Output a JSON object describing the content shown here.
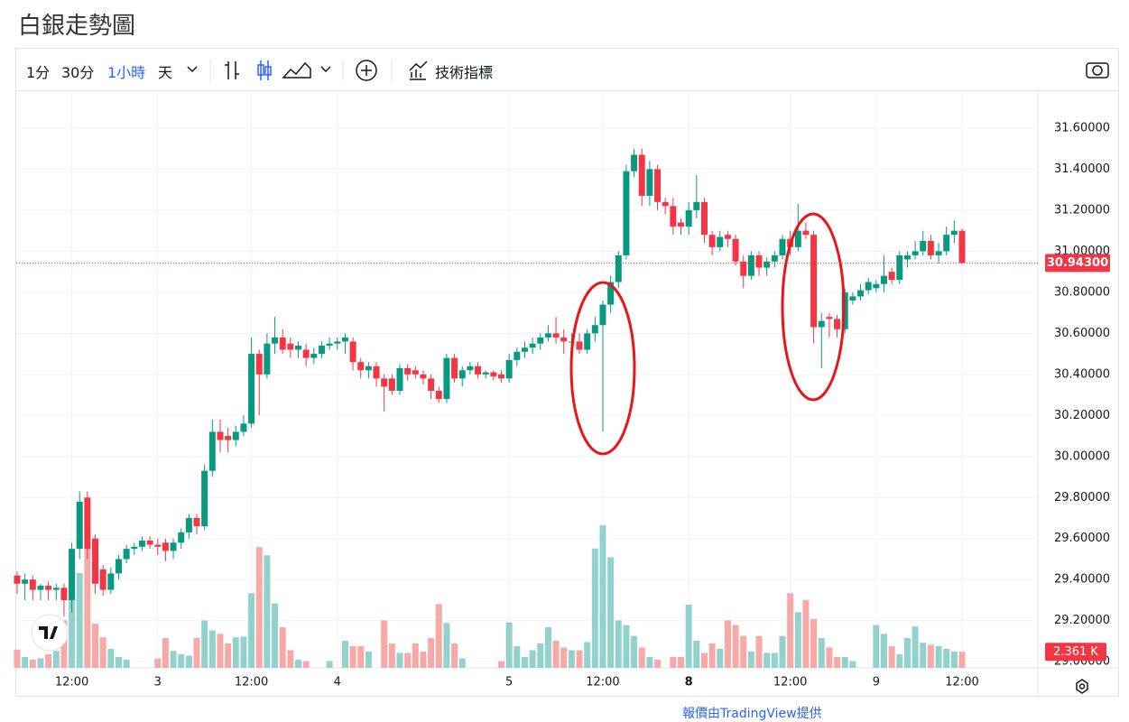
{
  "page_title": "白銀走勢圖",
  "toolbar": {
    "intervals": [
      "1分",
      "30分",
      "1小時",
      "天"
    ],
    "indicators": "技術指標"
  },
  "footer": "報價由TradingView提供",
  "chart_data": {
    "type": "candlestick",
    "up_color": "#089981",
    "down_color": "#f23645",
    "volume_up_color": "#93d2cc",
    "volume_down_color": "#f7a9a7",
    "grid": true,
    "ylim": [
      28.97,
      31.78
    ],
    "volume_ylim": [
      0,
      85
    ],
    "yticks": [
      {
        "value": 29.0,
        "label": "29.00000"
      },
      {
        "value": 29.2,
        "label": "29.20000"
      },
      {
        "value": 29.4,
        "label": "29.40000"
      },
      {
        "value": 29.6,
        "label": "29.60000"
      },
      {
        "value": 29.8,
        "label": "29.80000"
      },
      {
        "value": 30.0,
        "label": "30.00000"
      },
      {
        "value": 30.2,
        "label": "30.20000"
      },
      {
        "value": 30.4,
        "label": "30.40000"
      },
      {
        "value": 30.6,
        "label": "30.60000"
      },
      {
        "value": 30.8,
        "label": "30.80000"
      },
      {
        "value": 31.0,
        "label": "31.00000"
      },
      {
        "value": 31.2,
        "label": "31.20000"
      },
      {
        "value": 31.4,
        "label": "31.40000"
      },
      {
        "value": 31.6,
        "label": "31.60000"
      }
    ],
    "last_price_label": "30.94300",
    "last_volume_label": "2.361 K",
    "categories": [
      null,
      null,
      null,
      null,
      null,
      null,
      null,
      "12:00",
      null,
      null,
      null,
      null,
      null,
      null,
      null,
      null,
      null,
      null,
      "3",
      null,
      null,
      null,
      null,
      null,
      null,
      null,
      null,
      null,
      null,
      null,
      "12:00",
      null,
      null,
      null,
      null,
      null,
      null,
      null,
      null,
      null,
      null,
      "4",
      null,
      null,
      null,
      null,
      null,
      null,
      null,
      null,
      null,
      null,
      null,
      null,
      null,
      null,
      null,
      null,
      null,
      null,
      null,
      null,
      null,
      "5",
      null,
      null,
      null,
      null,
      null,
      null,
      null,
      null,
      null,
      null,
      null,
      "12:00",
      null,
      null,
      null,
      null,
      null,
      null,
      null,
      null,
      null,
      null,
      "8",
      null,
      null,
      null,
      null,
      null,
      null,
      null,
      null,
      null,
      null,
      null,
      null,
      "12:00",
      null,
      null,
      null,
      null,
      null,
      null,
      null,
      null,
      null,
      null,
      "9",
      null,
      null,
      null,
      null,
      null,
      null,
      null,
      null,
      null,
      null,
      "12:00"
    ],
    "candles": [
      [
        29.42,
        29.44,
        29.33,
        29.38
      ],
      [
        29.38,
        29.43,
        29.3,
        29.4
      ],
      [
        29.4,
        29.42,
        29.3,
        29.35
      ],
      [
        29.35,
        29.38,
        29.3,
        29.37
      ],
      [
        29.37,
        29.39,
        29.3,
        29.35
      ],
      [
        29.35,
        29.38,
        29.3,
        29.36
      ],
      [
        29.36,
        29.38,
        29.22,
        29.3
      ],
      [
        29.3,
        29.58,
        29.24,
        29.55
      ],
      [
        29.55,
        29.83,
        29.5,
        29.78
      ],
      [
        29.8,
        29.83,
        29.5,
        29.55
      ],
      [
        29.6,
        29.62,
        29.33,
        29.38
      ],
      [
        29.45,
        29.47,
        29.32,
        29.35
      ],
      [
        29.35,
        29.46,
        29.33,
        29.43
      ],
      [
        29.43,
        29.52,
        29.4,
        29.5
      ],
      [
        29.5,
        29.57,
        29.48,
        29.55
      ],
      [
        29.55,
        29.58,
        29.52,
        29.56
      ],
      [
        29.56,
        29.61,
        29.54,
        29.59
      ],
      [
        29.59,
        29.61,
        29.55,
        29.57
      ],
      [
        29.57,
        29.6,
        29.52,
        29.56
      ],
      [
        29.58,
        29.6,
        29.49,
        29.54
      ],
      [
        29.54,
        29.6,
        29.5,
        29.58
      ],
      [
        29.58,
        29.65,
        29.55,
        29.63
      ],
      [
        29.63,
        29.72,
        29.6,
        29.7
      ],
      [
        29.7,
        29.72,
        29.62,
        29.66
      ],
      [
        29.66,
        29.96,
        29.64,
        29.93
      ],
      [
        29.93,
        30.18,
        29.9,
        30.12
      ],
      [
        30.12,
        30.18,
        30.02,
        30.08
      ],
      [
        30.1,
        30.14,
        30.02,
        30.08
      ],
      [
        30.08,
        30.15,
        30.05,
        30.12
      ],
      [
        30.12,
        30.2,
        30.1,
        30.16
      ],
      [
        30.16,
        30.58,
        30.14,
        30.5
      ],
      [
        30.5,
        30.52,
        30.2,
        30.4
      ],
      [
        30.4,
        30.6,
        30.38,
        30.55
      ],
      [
        30.55,
        30.68,
        30.5,
        30.58
      ],
      [
        30.58,
        30.62,
        30.5,
        30.52
      ],
      [
        30.55,
        30.58,
        30.48,
        30.52
      ],
      [
        30.52,
        30.56,
        30.48,
        30.54
      ],
      [
        30.52,
        30.55,
        30.44,
        30.48
      ],
      [
        30.48,
        30.53,
        30.45,
        30.5
      ],
      [
        30.5,
        30.56,
        30.48,
        30.54
      ],
      [
        30.54,
        30.58,
        30.52,
        30.55
      ],
      [
        30.55,
        30.58,
        30.52,
        30.56
      ],
      [
        30.56,
        30.6,
        30.5,
        30.58
      ],
      [
        30.56,
        30.58,
        30.42,
        30.46
      ],
      [
        30.46,
        30.48,
        30.38,
        30.42
      ],
      [
        30.42,
        30.46,
        30.38,
        30.44
      ],
      [
        30.44,
        30.46,
        30.34,
        30.38
      ],
      [
        30.38,
        30.4,
        30.22,
        30.34
      ],
      [
        30.38,
        30.4,
        30.3,
        30.32
      ],
      [
        30.32,
        30.45,
        30.3,
        30.43
      ],
      [
        30.43,
        30.45,
        30.37,
        30.4
      ],
      [
        30.42,
        30.44,
        30.38,
        30.4
      ],
      [
        30.4,
        30.42,
        30.35,
        30.38
      ],
      [
        30.38,
        30.4,
        30.28,
        30.32
      ],
      [
        30.32,
        30.34,
        30.26,
        30.28
      ],
      [
        30.28,
        30.5,
        30.26,
        30.48
      ],
      [
        30.48,
        30.5,
        30.36,
        30.38
      ],
      [
        30.38,
        30.44,
        30.34,
        30.42
      ],
      [
        30.42,
        30.46,
        30.4,
        30.44
      ],
      [
        30.44,
        30.46,
        30.38,
        30.4
      ],
      [
        30.4,
        30.42,
        30.38,
        30.41
      ],
      [
        30.41,
        30.42,
        30.37,
        30.39
      ],
      [
        30.4,
        30.42,
        30.36,
        30.38
      ],
      [
        30.38,
        30.5,
        30.36,
        30.47
      ],
      [
        30.47,
        30.53,
        30.44,
        30.51
      ],
      [
        30.51,
        30.56,
        30.48,
        30.53
      ],
      [
        30.53,
        30.58,
        30.5,
        30.55
      ],
      [
        30.55,
        30.6,
        30.52,
        30.58
      ],
      [
        30.58,
        30.64,
        30.56,
        30.6
      ],
      [
        30.6,
        30.68,
        30.55,
        30.58
      ],
      [
        30.58,
        30.62,
        30.5,
        30.56
      ],
      [
        30.56,
        30.6,
        30.52,
        30.56
      ],
      [
        30.56,
        30.6,
        30.5,
        30.52
      ],
      [
        30.52,
        30.62,
        30.5,
        30.6
      ],
      [
        30.6,
        30.68,
        30.56,
        30.64
      ],
      [
        30.64,
        30.76,
        30.12,
        30.74
      ],
      [
        30.74,
        30.88,
        30.7,
        30.85
      ],
      [
        30.85,
        31.0,
        30.82,
        30.98
      ],
      [
        30.98,
        31.42,
        30.96,
        31.39
      ],
      [
        31.39,
        31.5,
        31.36,
        31.47
      ],
      [
        31.47,
        31.5,
        31.22,
        31.27
      ],
      [
        31.27,
        31.44,
        31.22,
        31.4
      ],
      [
        31.4,
        31.42,
        31.2,
        31.24
      ],
      [
        31.24,
        31.26,
        31.18,
        31.22
      ],
      [
        31.22,
        31.26,
        31.08,
        31.12
      ],
      [
        31.14,
        31.16,
        31.08,
        31.12
      ],
      [
        31.12,
        31.24,
        31.08,
        31.2
      ],
      [
        31.2,
        31.37,
        31.16,
        31.24
      ],
      [
        31.24,
        31.26,
        31.04,
        31.08
      ],
      [
        31.08,
        31.1,
        30.98,
        31.02
      ],
      [
        31.02,
        31.1,
        31.0,
        31.07
      ],
      [
        31.08,
        31.1,
        31.02,
        31.06
      ],
      [
        31.06,
        31.08,
        30.93,
        30.95
      ],
      [
        30.95,
        30.98,
        30.82,
        30.88
      ],
      [
        30.88,
        31.0,
        30.86,
        30.98
      ],
      [
        30.98,
        31.0,
        30.88,
        30.92
      ],
      [
        30.92,
        30.97,
        30.88,
        30.95
      ],
      [
        30.95,
        31.0,
        30.92,
        30.98
      ],
      [
        30.98,
        31.08,
        30.96,
        31.06
      ],
      [
        31.06,
        31.1,
        30.98,
        31.02
      ],
      [
        31.02,
        31.23,
        31.0,
        31.1
      ],
      [
        31.1,
        31.14,
        31.06,
        31.08
      ],
      [
        31.08,
        31.1,
        30.55,
        30.63
      ],
      [
        30.63,
        30.7,
        30.43,
        30.66
      ],
      [
        30.68,
        30.7,
        30.58,
        30.67
      ],
      [
        30.67,
        30.69,
        30.58,
        30.62
      ],
      [
        30.62,
        30.82,
        30.6,
        30.8
      ],
      [
        30.76,
        30.8,
        30.74,
        30.78
      ],
      [
        30.78,
        30.84,
        30.76,
        30.81
      ],
      [
        30.81,
        30.87,
        30.79,
        30.85
      ],
      [
        30.82,
        30.86,
        30.8,
        30.84
      ],
      [
        30.84,
        30.98,
        30.8,
        30.88
      ],
      [
        30.9,
        30.92,
        30.84,
        30.86
      ],
      [
        30.86,
        31.0,
        30.84,
        30.98
      ],
      [
        30.96,
        31.0,
        30.92,
        30.98
      ],
      [
        30.98,
        31.05,
        30.96,
        31.0
      ],
      [
        31.0,
        31.1,
        30.98,
        31.05
      ],
      [
        31.05,
        31.08,
        30.96,
        30.98
      ],
      [
        30.98,
        31.04,
        30.94,
        31.0
      ],
      [
        31.0,
        31.12,
        30.98,
        31.08
      ],
      [
        31.08,
        31.15,
        31.04,
        31.1
      ],
      [
        31.1,
        31.11,
        30.94,
        30.943
      ]
    ],
    "volumes": [
      2.7,
      1.6,
      1.2,
      1.4,
      2.0,
      2.5,
      7,
      10,
      14,
      17.8,
      6.5,
      4.5,
      2.8,
      1.6,
      1.2,
      0.8,
      0.6,
      0.8,
      1.4,
      4.4,
      2.5,
      2,
      1.8,
      4.4,
      7,
      5.5,
      5,
      3.6,
      4.5,
      4.6,
      11,
      17.8,
      16.6,
      9.5,
      6,
      2.6,
      1.2,
      1,
      0.8,
      0.7,
      1,
      0.4,
      4,
      3.2,
      3.2,
      2.4,
      0.6,
      7,
      3.6,
      2.2,
      2.2,
      3.6,
      2.4,
      4.4,
      9.4,
      6.6,
      3.6,
      1.4,
      0.6,
      0.6,
      0.3,
      0.6,
      1,
      6.7,
      3.2,
      1.6,
      2.6,
      3.6,
      6,
      4,
      3,
      2.6,
      2.6,
      3.8,
      17.6,
      21,
      16.3,
      7,
      6.3,
      4.7,
      3,
      1.6,
      1.2,
      0.9,
      1.6,
      1.6,
      9.3,
      4,
      2.2,
      3.6,
      2.8,
      7,
      6.3,
      4.7,
      2.4,
      4.7,
      2.2,
      2.2,
      4.7,
      11,
      8.2,
      10,
      7.2,
      4.4,
      3,
      1.6,
      1.6,
      1,
      0.6,
      0.6,
      6.3,
      5,
      3.2,
      2,
      4.4,
      6.1,
      3.7,
      3.4,
      3.2,
      2.8,
      2.4,
      2.361
    ]
  }
}
